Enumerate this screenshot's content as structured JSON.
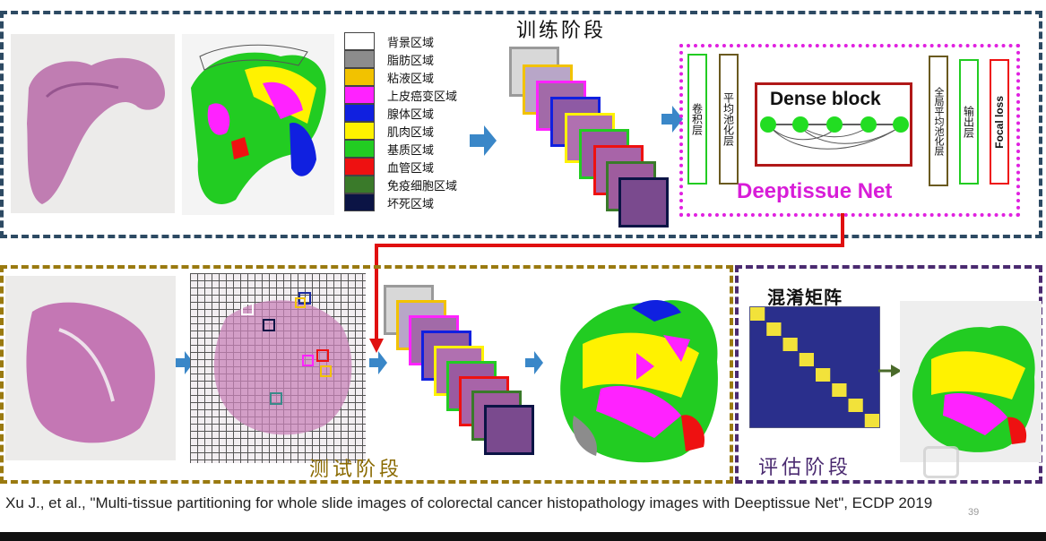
{
  "stages": {
    "train": "训练阶段",
    "test": "测试阶段",
    "eval": "评估阶段"
  },
  "legend": [
    {
      "label": "背景区域",
      "color": "#ffffff"
    },
    {
      "label": "脂肪区域",
      "color": "#8c8c8c"
    },
    {
      "label": "粘液区域",
      "color": "#f2c200"
    },
    {
      "label": "上皮癌变区域",
      "color": "#ff22ff"
    },
    {
      "label": "腺体区域",
      "color": "#1020e0"
    },
    {
      "label": "肌肉区域",
      "color": "#fff200"
    },
    {
      "label": "基质区域",
      "color": "#22cc22"
    },
    {
      "label": "血管区域",
      "color": "#ee1111"
    },
    {
      "label": "免疫细胞区域",
      "color": "#3a7a2a"
    },
    {
      "label": "坏死区域",
      "color": "#0b1445"
    }
  ],
  "network": {
    "name": "Deeptissue Net",
    "conv": "卷积层",
    "pool": "平均池化层",
    "dense": "Dense block",
    "gap": "全局平均池化层",
    "output": "输出层",
    "loss": "Focal loss"
  },
  "confusion": {
    "title": "混淆矩阵",
    "size": 8
  },
  "tile_colors": [
    "#9a9a9a",
    "#f2c200",
    "#ff22ff",
    "#1020e0",
    "#fff200",
    "#22cc22",
    "#ee1111",
    "#3a7a2a",
    "#0b1445"
  ],
  "citation": "Xu J., et al., \"Multi-tissue partitioning for whole slide images of colorectal cancer histopathology images with Deeptissue Net\", ECDP 2019",
  "page_number": "39",
  "colors": {
    "dash_blue": "#2d4a63",
    "dash_gold": "#9a7a10",
    "dash_purple": "#4a2a70",
    "dash_magenta": "#e020e0",
    "red_arrow": "#e01010",
    "green_arrow": "#4a6a2a",
    "blue_arrow": "#3a87c8"
  }
}
